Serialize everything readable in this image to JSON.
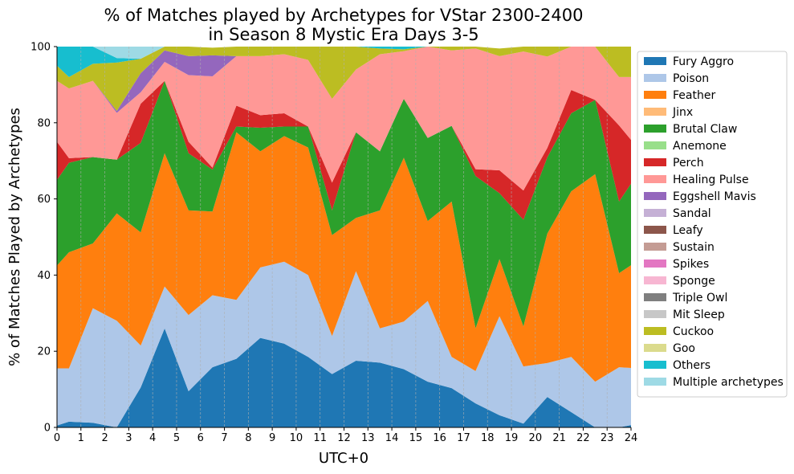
{
  "chart_data": {
    "type": "area",
    "stacked": true,
    "title": [
      "% of Matches played by Archetypes for VStar 2300-2400",
      "in Season 8 Mystic Era Days 3-5"
    ],
    "xlabel": "UTC+0",
    "ylabel": "% of Matches Played by Archetypes",
    "xlim": [
      0,
      24
    ],
    "ylim": [
      0,
      100
    ],
    "xticks": [
      0,
      1,
      2,
      3,
      4,
      5,
      6,
      7,
      8,
      9,
      10,
      11,
      12,
      13,
      14,
      15,
      16,
      17,
      18,
      19,
      20,
      21,
      22,
      23,
      24
    ],
    "yticks": [
      0,
      20,
      40,
      60,
      80,
      100
    ],
    "grid": "vertical-dashed",
    "legend_position": "right",
    "x": [
      0,
      0.5,
      1.5,
      2.5,
      3.5,
      4.5,
      5.5,
      6.5,
      7.5,
      8.5,
      9.5,
      10.5,
      11.5,
      12.5,
      13.5,
      14.5,
      15.5,
      16.5,
      17.5,
      18.5,
      19.5,
      20.5,
      21.5,
      22.5,
      23.5,
      24
    ],
    "series": [
      {
        "name": "Fury Aggro",
        "color": "#1f77b4",
        "values": [
          0.5,
          1.5,
          1.2,
          0,
          10.5,
          26,
          9.5,
          15.8,
          18,
          23.5,
          22,
          18.5,
          14,
          17.5,
          17,
          15.3,
          12,
          10.3,
          6.3,
          3.2,
          1,
          8,
          4,
          0,
          0,
          0.6
        ]
      },
      {
        "name": "Poison",
        "color": "#aec7e8",
        "values": [
          15,
          14,
          30.1,
          28,
          11,
          11,
          20,
          18.9,
          15.5,
          18.5,
          21.5,
          21.5,
          10,
          23.5,
          9,
          12.5,
          21.2,
          8.2,
          8.5,
          26,
          15,
          8.9,
          14.5,
          12,
          15.8,
          15
        ]
      },
      {
        "name": "Feather",
        "color": "#ff7f0e",
        "values": [
          27,
          30.5,
          17,
          28.2,
          29.7,
          35,
          27.5,
          22,
          44,
          30.5,
          33,
          33.5,
          26.5,
          14,
          31,
          43,
          21,
          40.8,
          11.2,
          15,
          10.5,
          34,
          43.5,
          54.5,
          24.7,
          27
        ]
      },
      {
        "name": "Jinx",
        "color": "#ffbb78",
        "values": [
          0,
          0,
          0,
          0,
          0,
          0,
          0,
          0,
          0,
          0,
          0,
          0,
          0,
          0,
          0,
          0,
          0,
          0,
          0,
          0,
          0,
          0,
          0,
          0,
          0,
          0
        ]
      },
      {
        "name": "Brutal Claw",
        "color": "#2ca02c",
        "values": [
          22.5,
          23.5,
          22.7,
          14.1,
          23.5,
          19,
          15,
          11,
          1.5,
          6.2,
          2.5,
          5.5,
          6.5,
          22.5,
          15.5,
          15.5,
          21.8,
          19.9,
          40,
          17.3,
          28,
          20,
          20.5,
          19.5,
          18.8,
          21.4
        ]
      },
      {
        "name": "Anemone",
        "color": "#98df8a",
        "values": [
          0,
          0,
          0,
          0,
          0,
          0,
          0,
          0,
          0,
          0,
          0,
          0,
          0,
          0,
          0,
          0,
          0,
          0,
          0,
          0,
          0,
          0,
          0,
          0,
          0,
          0
        ]
      },
      {
        "name": "Perch",
        "color": "#d62728",
        "values": [
          10,
          1.2,
          0,
          0,
          10.3,
          0,
          3,
          0.5,
          5.5,
          3.3,
          3.5,
          0,
          7.3,
          0,
          0,
          0,
          0,
          0,
          1.8,
          6,
          7.7,
          2.5,
          6.1,
          0,
          20,
          11.5
        ]
      },
      {
        "name": "Healing Pulse",
        "color": "#ff9896",
        "values": [
          16,
          18.3,
          20,
          12.3,
          3,
          5,
          17.5,
          24,
          13,
          15.5,
          15.5,
          17.5,
          22,
          16.5,
          25.5,
          12.5,
          24,
          19.8,
          31.7,
          30,
          36.5,
          24,
          11.4,
          14,
          12.7,
          16.5
        ]
      },
      {
        "name": "Eggshell Mavis",
        "color": "#9467bd",
        "values": [
          0,
          0,
          0,
          0.5,
          5,
          3,
          5,
          5.5,
          0,
          0,
          0,
          0,
          0,
          0,
          0,
          0,
          0,
          0,
          0,
          0,
          0,
          0,
          0,
          0,
          0,
          0
        ]
      },
      {
        "name": "Sandal",
        "color": "#c5b0d5",
        "values": [
          0,
          0,
          0,
          0,
          0,
          0,
          0,
          0,
          0,
          0,
          0,
          0,
          0,
          0,
          0,
          0,
          0,
          0,
          0,
          0,
          0,
          0,
          0,
          0,
          0,
          0
        ]
      },
      {
        "name": "Leafy",
        "color": "#8c564b",
        "values": [
          0,
          0,
          0,
          0,
          0,
          0,
          0,
          0,
          0,
          0,
          0,
          0,
          0,
          0,
          0,
          0,
          0,
          0,
          0,
          0,
          0,
          0,
          0,
          0,
          0,
          0
        ]
      },
      {
        "name": "Sustain",
        "color": "#c49c94",
        "values": [
          0,
          0,
          0,
          0,
          0,
          0,
          0,
          0,
          0,
          0,
          0,
          0,
          0,
          0,
          0,
          0,
          0,
          0,
          0,
          0,
          0,
          0,
          0,
          0,
          0,
          0
        ]
      },
      {
        "name": "Spikes",
        "color": "#e377c2",
        "values": [
          0,
          0,
          0,
          0,
          0,
          0,
          0,
          0,
          0,
          0,
          0,
          0,
          0,
          0,
          0,
          0,
          0,
          0,
          0,
          0,
          0,
          0,
          0,
          0,
          0,
          0
        ]
      },
      {
        "name": "Sponge",
        "color": "#f7b6d2",
        "values": [
          0,
          0,
          0,
          0,
          0,
          0,
          0,
          0,
          0,
          0,
          0,
          0,
          0,
          0,
          0,
          0,
          0,
          0,
          0,
          0,
          0,
          0,
          0,
          0,
          0,
          0
        ]
      },
      {
        "name": "Triple Owl",
        "color": "#7f7f7f",
        "values": [
          0,
          0,
          0,
          0,
          0,
          0,
          0,
          0,
          0,
          0,
          0,
          0,
          0,
          0,
          0,
          0,
          0,
          0,
          0,
          0,
          0,
          0,
          0,
          0,
          0,
          0
        ]
      },
      {
        "name": "Mit Sleep",
        "color": "#c7c7c7",
        "values": [
          0,
          0,
          0,
          0,
          0,
          0,
          0,
          0,
          0,
          0,
          0,
          0,
          0,
          0,
          0,
          0,
          0,
          0,
          0,
          0,
          0,
          0,
          0,
          0,
          0,
          0
        ]
      },
      {
        "name": "Cuckoo",
        "color": "#bcbd22",
        "values": [
          4,
          3,
          4.5,
          12.7,
          3.8,
          1,
          2.5,
          2,
          2.5,
          2.5,
          2,
          3.5,
          13.7,
          6,
          1.5,
          0.5,
          0,
          1,
          0.5,
          2,
          1.3,
          2.6,
          0,
          0,
          8,
          8
        ]
      },
      {
        "name": "Goo",
        "color": "#dbdb8d",
        "values": [
          0,
          0,
          0,
          0,
          0,
          0,
          0,
          0,
          0,
          0,
          0,
          0,
          0,
          0,
          0,
          0,
          0,
          0,
          0,
          0,
          0,
          0,
          0,
          0,
          0,
          0
        ]
      },
      {
        "name": "Others",
        "color": "#17becf",
        "values": [
          5,
          8,
          4.5,
          1.2,
          0,
          0,
          0,
          0,
          0,
          0,
          0,
          0,
          0,
          0,
          0.5,
          0.7,
          2,
          0,
          0,
          0,
          0,
          0,
          0,
          0,
          0,
          0
        ]
      },
      {
        "name": "Multiple archetypes",
        "color": "#9edae5",
        "values": [
          0,
          0,
          0,
          3,
          3.2,
          0,
          0,
          0,
          0,
          0,
          0,
          0,
          0,
          0,
          0,
          0,
          0,
          0,
          0,
          0,
          0,
          0,
          0,
          0,
          0,
          0
        ]
      }
    ]
  }
}
